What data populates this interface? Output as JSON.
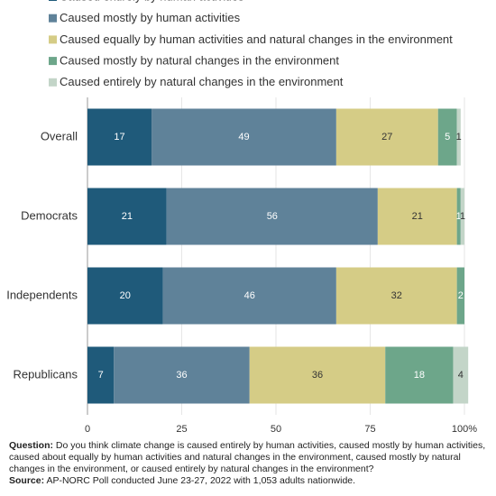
{
  "chart_data": {
    "type": "stacked-bar-horizontal",
    "categories": [
      "Overall",
      "Democrats",
      "Independents",
      "Republicans"
    ],
    "series": [
      {
        "name": "Caused entirely by human activities",
        "color": "#1f5a7a",
        "values": [
          17,
          21,
          20,
          7
        ]
      },
      {
        "name": "Caused mostly by human activities",
        "color": "#5f8299",
        "values": [
          49,
          56,
          46,
          36
        ]
      },
      {
        "name": "Caused equally by human activities and natural changes in the environment",
        "color": "#d5cc86",
        "values": [
          27,
          21,
          32,
          36
        ]
      },
      {
        "name": "Caused mostly by natural changes in the environment",
        "color": "#6da68a",
        "values": [
          5,
          1,
          2,
          18
        ]
      },
      {
        "name": "Caused entirely by natural changes in the environment",
        "color": "#c3d5c8",
        "values": [
          1,
          1,
          null,
          4
        ]
      }
    ],
    "xlim": [
      0,
      100
    ],
    "xticks": [
      0,
      25,
      50,
      75,
      {
        "value": 100,
        "label": "100%"
      }
    ],
    "grid": true,
    "legend": "top",
    "question_label": "Question:",
    "question": "Do you think climate change is caused entirely by human activities, caused mostly by human activities, caused about equally by human activities and natural changes in the environment, caused mostly by natural changes in the environment, or caused entirely by natural changes in the environment?",
    "source_label": "Source:",
    "source": "AP-NORC Poll conducted June 23-27, 2022 with 1,053 adults nationwide."
  }
}
